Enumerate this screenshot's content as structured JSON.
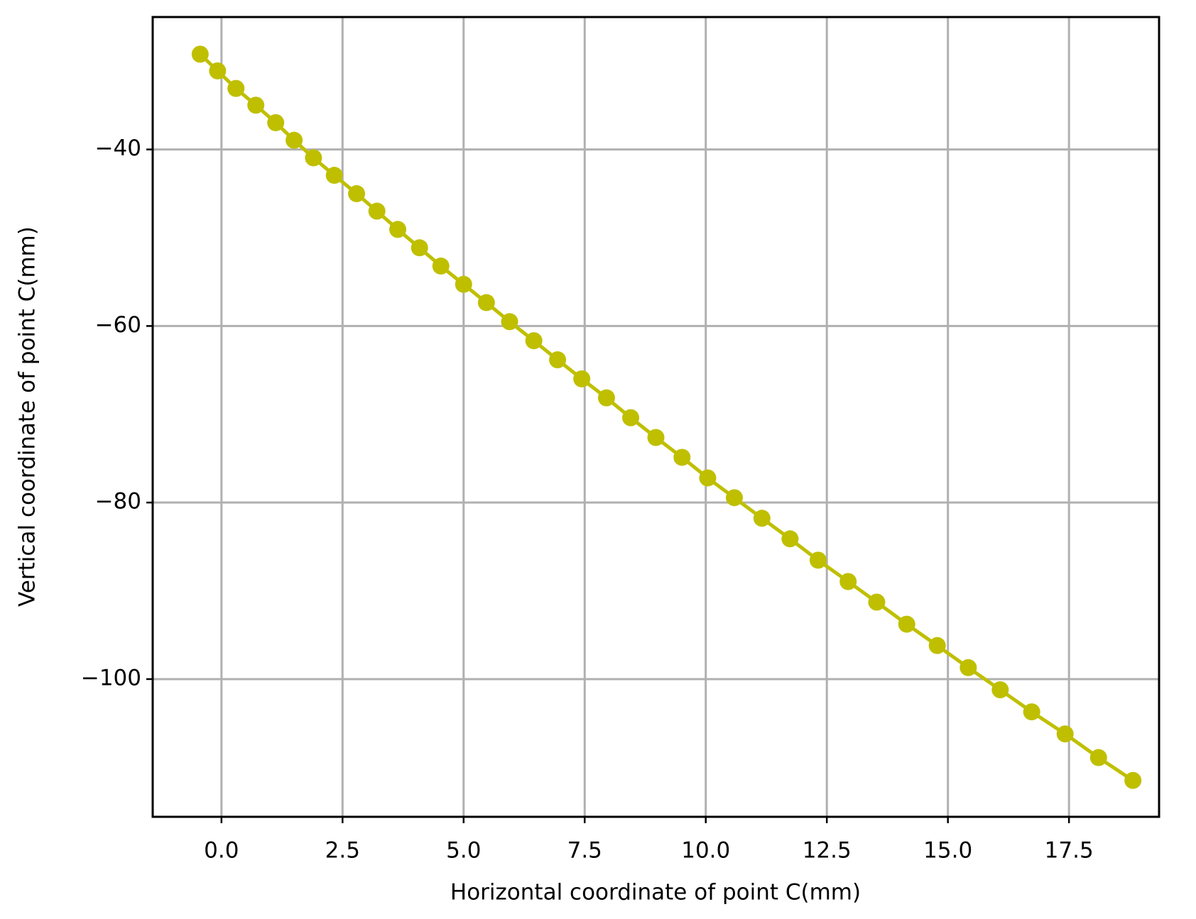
{
  "chart_data": {
    "type": "line",
    "xlabel": "Horizontal coordinate of point C(mm)",
    "ylabel": "Vertical coordinate of point C(mm)",
    "x": [
      -0.44,
      -0.08,
      0.3,
      0.71,
      1.12,
      1.5,
      1.9,
      2.33,
      2.79,
      3.21,
      3.64,
      4.09,
      4.53,
      5.0,
      5.47,
      5.95,
      6.45,
      6.94,
      7.44,
      7.95,
      8.45,
      8.97,
      9.51,
      10.04,
      10.59,
      11.16,
      11.74,
      12.32,
      12.94,
      13.53,
      14.15,
      14.78,
      15.42,
      16.08,
      16.73,
      17.42,
      18.11,
      18.82
    ],
    "series": [
      {
        "color": "#bfbf00",
        "values": [
          -29.21,
          -31.1,
          -33.09,
          -34.99,
          -36.97,
          -38.96,
          -40.95,
          -42.93,
          -45.01,
          -46.99,
          -49.06,
          -51.14,
          -53.21,
          -55.28,
          -57.35,
          -59.51,
          -61.67,
          -63.83,
          -65.99,
          -68.14,
          -70.39,
          -72.63,
          -74.88,
          -77.21,
          -79.45,
          -81.78,
          -84.11,
          -86.53,
          -88.95,
          -91.28,
          -93.78,
          -96.2,
          -98.7,
          -101.21,
          -103.71,
          -106.21,
          -108.89,
          -111.48
        ]
      }
    ],
    "xlim": [
      -1.42,
      19.36
    ],
    "ylim": [
      -115.6,
      -25.0
    ],
    "xticks": [
      {
        "value": 0,
        "label": "0.0"
      },
      {
        "value": 2.5,
        "label": "2.5"
      },
      {
        "value": 5,
        "label": "5.0"
      },
      {
        "value": 7.5,
        "label": "7.5"
      },
      {
        "value": 10,
        "label": "10.0"
      },
      {
        "value": 12.5,
        "label": "12.5"
      },
      {
        "value": 15,
        "label": "15.0"
      },
      {
        "value": 17.5,
        "label": "17.5"
      }
    ],
    "yticks": [
      {
        "value": -100,
        "label": "−100"
      },
      {
        "value": -80,
        "label": "−80"
      },
      {
        "value": -60,
        "label": "−60"
      },
      {
        "value": -40,
        "label": "−40"
      }
    ],
    "grid": true
  }
}
